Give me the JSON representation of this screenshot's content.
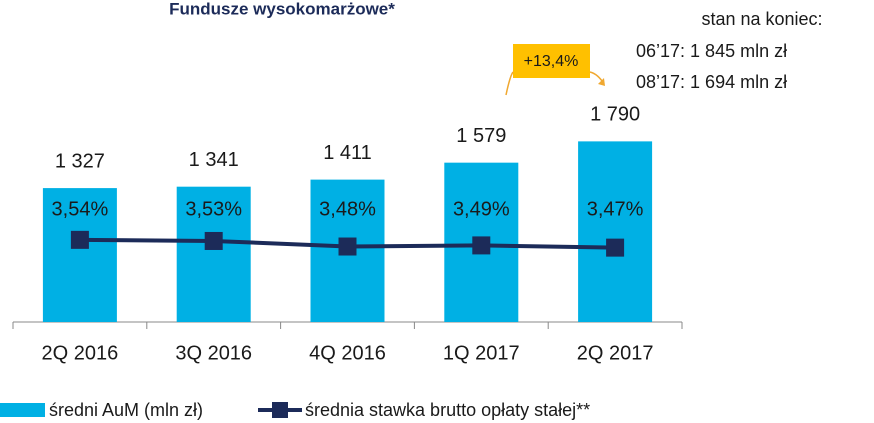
{
  "chart_data": {
    "type": "bar",
    "title": "Fundusze wysokomarżowe*",
    "categories": [
      "2Q 2016",
      "3Q 2016",
      "4Q 2016",
      "1Q 2017",
      "2Q 2017"
    ],
    "series": [
      {
        "name": "średni AuM (mln zł)",
        "type": "bar",
        "color": "#00b0e4",
        "values": [
          1327,
          1341,
          1411,
          1579,
          1790
        ],
        "value_labels": [
          "1 327",
          "1 341",
          "1 411",
          "1 579",
          "1 790"
        ]
      },
      {
        "name": "średnia stawka brutto opłaty stałej**",
        "type": "line",
        "axis": "y2",
        "color": "#1c2b59",
        "values": [
          3.54,
          3.53,
          3.48,
          3.49,
          3.47
        ],
        "value_labels": [
          "3,54%",
          "3,53%",
          "3,48%",
          "3,49%",
          "3,47%"
        ]
      }
    ],
    "ylim": [
      0,
      2200
    ],
    "y2lim": [
      2.8,
      4.8
    ],
    "annotation": "+13,4%",
    "side_note": [
      "stan na koniec:",
      "06’17: 1 845 mln zł",
      "08’17: 1 694 mln zł"
    ]
  }
}
